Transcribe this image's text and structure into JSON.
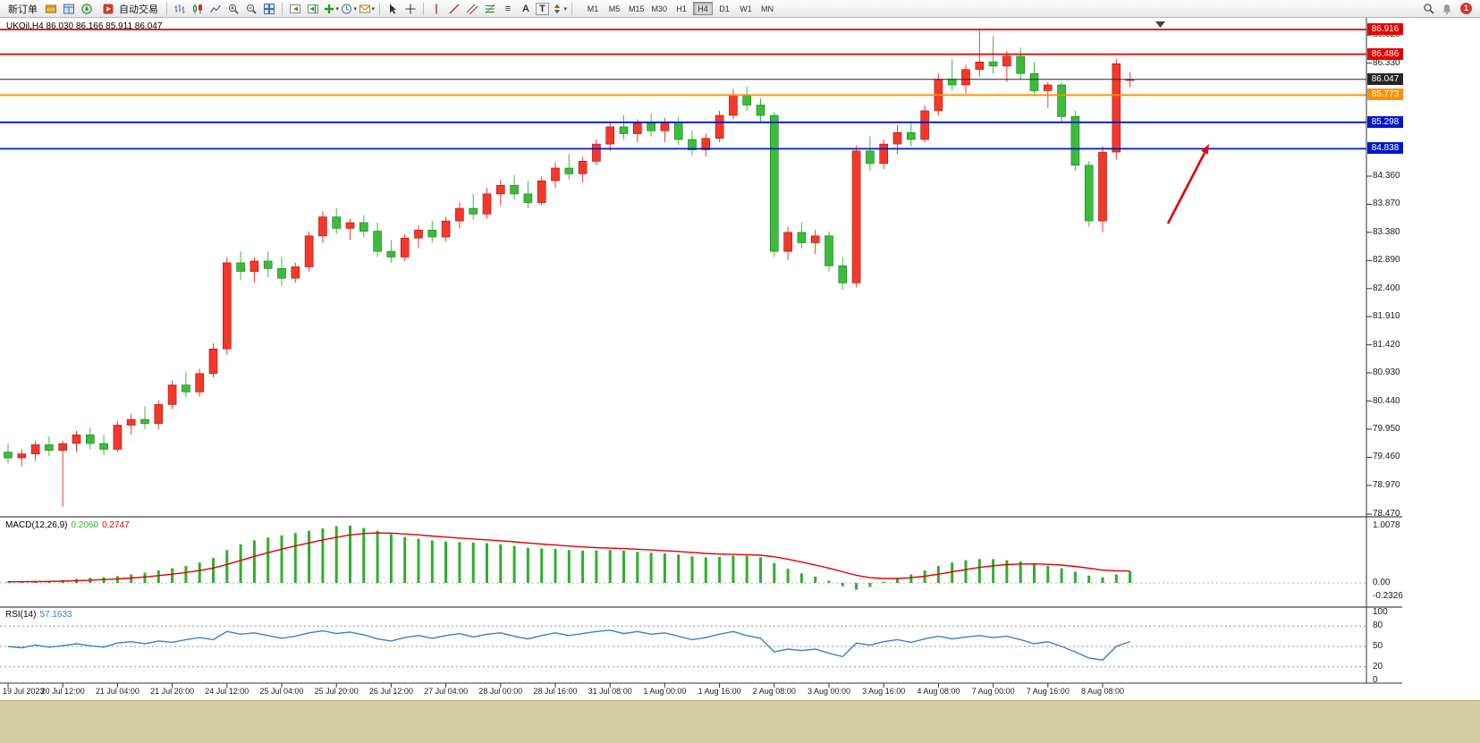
{
  "toolbar": {
    "new_order_label": "新订单",
    "auto_trading_label": "自动交易",
    "timeframes": [
      "M1",
      "M5",
      "M15",
      "M30",
      "H1",
      "H4",
      "D1",
      "W1",
      "MN"
    ],
    "active_timeframe": "H4",
    "notification_badge": "1",
    "icons": {
      "market-watch-icon": "gold-panel",
      "data-window-icon": "blue-panel",
      "navigator-icon": "green-compass",
      "autotrading-icon": "red-play",
      "bar-chart-icon": "ohlc-bars",
      "candlestick-chart-icon": "candles",
      "line-chart-icon": "zigzag",
      "zoom-in-icon": "magnifier-plus",
      "zoom-out-icon": "magnifier-minus",
      "tile-windows-icon": "grid",
      "auto-scroll-icon": "chart-scroll",
      "chart-shift-icon": "chart-shift",
      "indicators-icon": "green-plus",
      "periods-icon": "clock",
      "templates-icon": "envelope",
      "cursor-icon": "pointer",
      "crosshair-icon": "cross",
      "vertical-line-icon": "|",
      "trendline-icon": "/",
      "equidistant-channel-icon": "//",
      "fibonacci-icon": "fibo",
      "horizontal-line-icon": "≡",
      "text-label-icon": "A",
      "text-box-icon": "T",
      "arrows-icon": "updown",
      "search-icon": "magnifier",
      "notification-icon": "red-badge",
      "caret": "▾"
    }
  },
  "chart": {
    "symbol_ohlc_label": "UKOil,H4 86.030 86.166 85.911 86.047"
  },
  "indicators": {
    "macd": {
      "name": "MACD(12,26,9)",
      "value_main": "0.2060",
      "value_signal": "0.2747",
      "scale_labels": [
        "1.0078",
        "0.00",
        "-0.2326"
      ]
    },
    "rsi": {
      "name": "RSI(14)",
      "value": "57.1633",
      "scale_labels": [
        "100",
        "80",
        "50",
        "20",
        "0"
      ],
      "levels": [
        80,
        50,
        20
      ]
    }
  },
  "chart_data": {
    "type": "candlestick",
    "title": "UKOil H4",
    "ohlc_current": {
      "open": 86.03,
      "high": 86.166,
      "low": 85.911,
      "close": 86.047
    },
    "price_axis": {
      "min": 78.47,
      "max": 86.916,
      "ticks": [
        86.82,
        86.33,
        84.36,
        83.87,
        83.38,
        82.89,
        82.4,
        81.91,
        81.42,
        80.93,
        80.44,
        79.95,
        79.46,
        78.97,
        78.47
      ]
    },
    "levels": [
      {
        "price": 86.916,
        "label": "86.916",
        "color": "#e60000",
        "type": "resistance"
      },
      {
        "price": 86.486,
        "label": "86.486",
        "color": "#e60000",
        "type": "resistance"
      },
      {
        "price": 86.047,
        "label": "86.047",
        "color": "#262626",
        "type": "current-price"
      },
      {
        "price": 85.773,
        "label": "85.773",
        "color": "#ff9000",
        "type": "level"
      },
      {
        "price": 85.298,
        "label": "85.298",
        "color": "#0018c8",
        "type": "support"
      },
      {
        "price": 84.838,
        "label": "84.838",
        "color": "#0018c8",
        "type": "support"
      }
    ],
    "colors": {
      "bull": "#f5372b",
      "bear": "#3cbc3c",
      "macd_histogram": "#2fae2f",
      "macd_signal": "#e60000",
      "rsi_line": "#3e7fc1",
      "annotation": "#e60000"
    },
    "time_labels": [
      "19 Jul 2023",
      "20 Jul 12:00",
      "21 Jul 04:00",
      "21 Jul 20:00",
      "24 Jul 12:00",
      "25 Jul 04:00",
      "25 Jul 20:00",
      "26 Jul 12:00",
      "27 Jul 04:00",
      "28 Jul 00:00",
      "28 Jul 16:00",
      "31 Jul 08:00",
      "1 Aug 00:00",
      "1 Aug 16:00",
      "2 Aug 08:00",
      "3 Aug 00:00",
      "3 Aug 16:00",
      "4 Aug 08:00",
      "7 Aug 00:00",
      "7 Aug 16:00",
      "8 Aug 08:00"
    ],
    "candles_ohlc": [
      [
        79.55,
        79.7,
        79.35,
        79.45
      ],
      [
        79.45,
        79.6,
        79.3,
        79.52
      ],
      [
        79.52,
        79.75,
        79.4,
        79.68
      ],
      [
        79.68,
        79.82,
        79.48,
        79.58
      ],
      [
        79.58,
        79.75,
        78.6,
        79.7
      ],
      [
        79.7,
        79.92,
        79.55,
        79.85
      ],
      [
        79.85,
        79.98,
        79.6,
        79.7
      ],
      [
        79.7,
        79.85,
        79.5,
        79.6
      ],
      [
        79.6,
        80.1,
        79.55,
        80.02
      ],
      [
        80.02,
        80.22,
        79.85,
        80.12
      ],
      [
        80.12,
        80.35,
        79.95,
        80.05
      ],
      [
        80.05,
        80.45,
        79.95,
        80.38
      ],
      [
        80.38,
        80.8,
        80.3,
        80.72
      ],
      [
        80.72,
        80.95,
        80.5,
        80.6
      ],
      [
        80.6,
        81.0,
        80.52,
        80.92
      ],
      [
        80.92,
        81.45,
        80.85,
        81.35
      ],
      [
        81.35,
        82.95,
        81.25,
        82.85
      ],
      [
        82.85,
        83.05,
        82.55,
        82.7
      ],
      [
        82.7,
        82.95,
        82.5,
        82.88
      ],
      [
        82.88,
        83.05,
        82.6,
        82.75
      ],
      [
        82.75,
        82.95,
        82.45,
        82.58
      ],
      [
        82.58,
        82.85,
        82.5,
        82.78
      ],
      [
        82.78,
        83.4,
        82.7,
        83.32
      ],
      [
        83.32,
        83.75,
        83.2,
        83.65
      ],
      [
        83.65,
        83.8,
        83.35,
        83.45
      ],
      [
        83.45,
        83.62,
        83.25,
        83.55
      ],
      [
        83.55,
        83.68,
        83.3,
        83.4
      ],
      [
        83.4,
        83.55,
        82.95,
        83.05
      ],
      [
        83.05,
        83.25,
        82.85,
        82.95
      ],
      [
        82.95,
        83.35,
        82.88,
        83.28
      ],
      [
        83.28,
        83.5,
        83.1,
        83.42
      ],
      [
        83.42,
        83.58,
        83.2,
        83.3
      ],
      [
        83.3,
        83.65,
        83.22,
        83.58
      ],
      [
        83.58,
        83.9,
        83.45,
        83.8
      ],
      [
        83.8,
        84.05,
        83.6,
        83.7
      ],
      [
        83.7,
        84.15,
        83.62,
        84.05
      ],
      [
        84.05,
        84.3,
        83.85,
        84.2
      ],
      [
        84.2,
        84.38,
        83.95,
        84.05
      ],
      [
        84.05,
        84.28,
        83.8,
        83.9
      ],
      [
        83.9,
        84.35,
        83.85,
        84.28
      ],
      [
        84.28,
        84.6,
        84.15,
        84.5
      ],
      [
        84.5,
        84.75,
        84.3,
        84.4
      ],
      [
        84.4,
        84.7,
        84.25,
        84.62
      ],
      [
        84.62,
        85.0,
        84.55,
        84.92
      ],
      [
        84.92,
        85.3,
        84.8,
        85.22
      ],
      [
        85.22,
        85.42,
        85.0,
        85.1
      ],
      [
        85.1,
        85.35,
        84.95,
        85.28
      ],
      [
        85.28,
        85.45,
        85.05,
        85.15
      ],
      [
        85.15,
        85.38,
        84.95,
        85.3
      ],
      [
        85.3,
        85.4,
        84.9,
        85.0
      ],
      [
        85.0,
        85.15,
        84.72,
        84.82
      ],
      [
        84.82,
        85.1,
        84.7,
        85.02
      ],
      [
        85.02,
        85.5,
        84.95,
        85.42
      ],
      [
        85.42,
        85.88,
        85.35,
        85.78
      ],
      [
        85.78,
        85.92,
        85.5,
        85.6
      ],
      [
        85.6,
        85.72,
        85.3,
        85.42
      ],
      [
        85.42,
        85.48,
        82.95,
        83.05
      ],
      [
        83.05,
        83.48,
        82.9,
        83.38
      ],
      [
        83.38,
        83.55,
        83.1,
        83.2
      ],
      [
        83.2,
        83.42,
        83.0,
        83.32
      ],
      [
        83.32,
        83.4,
        82.7,
        82.8
      ],
      [
        82.8,
        82.95,
        82.38,
        82.5
      ],
      [
        82.5,
        84.9,
        82.42,
        84.8
      ],
      [
        84.8,
        85.05,
        84.45,
        84.58
      ],
      [
        84.58,
        85.0,
        84.48,
        84.92
      ],
      [
        84.92,
        85.25,
        84.75,
        85.12
      ],
      [
        85.12,
        85.32,
        84.88,
        85.0
      ],
      [
        85.0,
        85.6,
        84.95,
        85.5
      ],
      [
        85.5,
        86.15,
        85.42,
        86.05
      ],
      [
        86.05,
        86.4,
        85.85,
        85.95
      ],
      [
        85.95,
        86.3,
        85.8,
        86.22
      ],
      [
        86.22,
        86.9,
        86.1,
        86.35
      ],
      [
        86.35,
        86.8,
        86.15,
        86.28
      ],
      [
        86.28,
        86.55,
        86.0,
        86.45
      ],
      [
        86.45,
        86.6,
        86.05,
        86.15
      ],
      [
        86.15,
        86.35,
        85.75,
        85.85
      ],
      [
        85.85,
        86.0,
        85.55,
        85.95
      ],
      [
        85.95,
        86.0,
        85.3,
        85.4
      ],
      [
        85.4,
        85.5,
        84.45,
        84.55
      ],
      [
        84.55,
        84.62,
        83.48,
        83.58
      ],
      [
        83.58,
        84.88,
        83.38,
        84.78
      ],
      [
        84.78,
        86.4,
        84.65,
        86.32
      ],
      [
        86.03,
        86.166,
        85.911,
        86.047
      ]
    ],
    "macd_histogram": [
      0.02,
      0.03,
      0.03,
      0.04,
      0.05,
      0.07,
      0.09,
      0.1,
      0.12,
      0.15,
      0.18,
      0.22,
      0.26,
      0.3,
      0.36,
      0.44,
      0.58,
      0.68,
      0.75,
      0.8,
      0.84,
      0.88,
      0.92,
      0.96,
      1.0,
      1.0078,
      0.97,
      0.92,
      0.86,
      0.81,
      0.78,
      0.75,
      0.73,
      0.72,
      0.71,
      0.7,
      0.68,
      0.65,
      0.62,
      0.61,
      0.6,
      0.58,
      0.57,
      0.57,
      0.58,
      0.57,
      0.55,
      0.53,
      0.52,
      0.5,
      0.47,
      0.45,
      0.46,
      0.48,
      0.48,
      0.45,
      0.35,
      0.25,
      0.17,
      0.11,
      0.04,
      -0.06,
      -0.12,
      -0.07,
      0.02,
      0.08,
      0.15,
      0.22,
      0.3,
      0.36,
      0.4,
      0.42,
      0.42,
      0.4,
      0.38,
      0.34,
      0.3,
      0.26,
      0.2,
      0.13,
      0.1,
      0.15,
      0.206
    ],
    "rsi_values": [
      50,
      48,
      52,
      49,
      51,
      54,
      51,
      49,
      55,
      57,
      54,
      58,
      56,
      60,
      63,
      60,
      72,
      68,
      70,
      66,
      62,
      65,
      70,
      73,
      69,
      71,
      67,
      61,
      58,
      63,
      66,
      62,
      66,
      69,
      64,
      68,
      70,
      65,
      61,
      66,
      70,
      66,
      69,
      72,
      74,
      69,
      72,
      68,
      70,
      65,
      60,
      63,
      68,
      72,
      66,
      62,
      42,
      46,
      44,
      46,
      40,
      35,
      55,
      52,
      57,
      60,
      56,
      61,
      65,
      61,
      64,
      66,
      63,
      65,
      60,
      54,
      57,
      50,
      42,
      33,
      30,
      50,
      57.16
    ],
    "annotation": {
      "type": "up-arrow",
      "color": "#e60000",
      "points_to_level": "84.838"
    }
  }
}
